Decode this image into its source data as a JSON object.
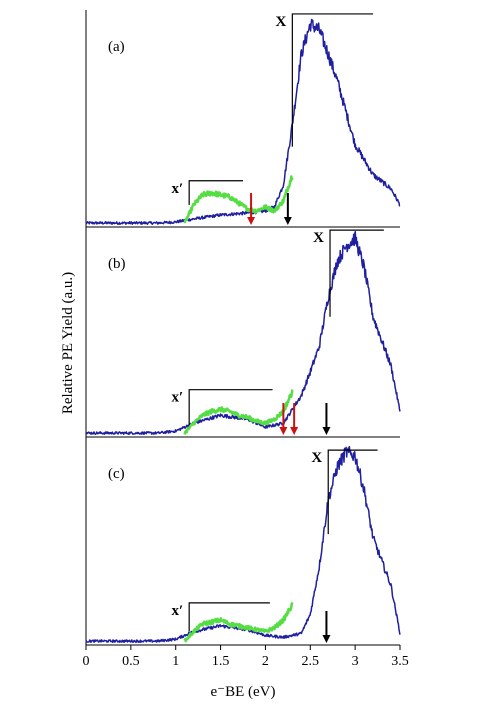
{
  "chart_data": {
    "type": "line",
    "xlabel": "e⁻BE (eV)",
    "ylabel": "Relative PE Yield (a.u.)",
    "xlim": [
      0,
      3.5
    ],
    "x_ticks": [
      0,
      0.5,
      1,
      1.5,
      2,
      2.5,
      3,
      3.5
    ],
    "x_tick_labels": [
      "0",
      "0.5",
      "1",
      "1.5",
      "2",
      "2.5",
      "3",
      "3.5"
    ],
    "colors": {
      "blue": "#1f1f9f",
      "green": "#55dd44",
      "red": "#cc1111",
      "black": "#000000"
    },
    "panels": [
      {
        "label": "(a)",
        "blue": {
          "x": [
            0,
            0.8,
            1.0,
            1.2,
            1.5,
            1.8,
            2.0,
            2.1,
            2.2,
            2.3,
            2.4,
            2.5,
            2.6,
            2.7,
            2.8,
            3.0,
            3.2,
            3.4,
            3.5
          ],
          "y": [
            0.01,
            0.01,
            0.015,
            0.03,
            0.05,
            0.06,
            0.07,
            0.09,
            0.2,
            0.5,
            0.85,
            1.0,
            0.97,
            0.85,
            0.72,
            0.4,
            0.25,
            0.18,
            0.1
          ]
        },
        "green": {
          "x": [
            1.1,
            1.2,
            1.3,
            1.4,
            1.5,
            1.6,
            1.7,
            1.8,
            1.9,
            2.0,
            2.1,
            2.2,
            2.3
          ],
          "y": [
            0.01,
            0.1,
            0.15,
            0.16,
            0.15,
            0.14,
            0.11,
            0.08,
            0.07,
            0.09,
            0.07,
            0.12,
            0.25
          ]
        },
        "arrows": [
          {
            "x": 1.84,
            "color": "red"
          },
          {
            "x": 2.25,
            "color": "black"
          }
        ],
        "markers": [
          {
            "text": "X",
            "x0": 2.3,
            "x1": 3.2,
            "level": 1.05,
            "drop": 0.66
          },
          {
            "text": "x′",
            "x0": 1.15,
            "x1": 1.75,
            "level": 0.22,
            "drop": 0.12
          }
        ]
      },
      {
        "label": "(b)",
        "blue": {
          "x": [
            0,
            0.8,
            1.0,
            1.2,
            1.5,
            1.8,
            2.0,
            2.2,
            2.4,
            2.5,
            2.6,
            2.7,
            2.8,
            2.9,
            3.0,
            3.1,
            3.2,
            3.4,
            3.5
          ],
          "y": [
            0.01,
            0.01,
            0.02,
            0.06,
            0.1,
            0.08,
            0.04,
            0.06,
            0.2,
            0.32,
            0.45,
            0.7,
            0.88,
            0.96,
            1.0,
            0.85,
            0.6,
            0.35,
            0.12
          ]
        },
        "green": {
          "x": [
            1.1,
            1.2,
            1.3,
            1.4,
            1.5,
            1.6,
            1.7,
            1.8,
            1.9,
            2.0,
            2.1,
            2.2,
            2.3
          ],
          "y": [
            0.01,
            0.06,
            0.1,
            0.12,
            0.13,
            0.12,
            0.1,
            0.09,
            0.07,
            0.06,
            0.08,
            0.12,
            0.22
          ]
        },
        "arrows": [
          {
            "x": 2.2,
            "color": "red"
          },
          {
            "x": 2.32,
            "color": "red"
          },
          {
            "x": 2.68,
            "color": "black"
          }
        ],
        "markers": [
          {
            "text": "X",
            "x0": 2.72,
            "x1": 3.32,
            "level": 1.04,
            "drop": 0.44
          },
          {
            "text": "x′",
            "x0": 1.15,
            "x1": 2.08,
            "level": 0.23,
            "drop": 0.18
          }
        ]
      },
      {
        "label": "(c)",
        "blue": {
          "x": [
            0,
            0.8,
            1.0,
            1.2,
            1.5,
            1.8,
            2.0,
            2.2,
            2.4,
            2.5,
            2.6,
            2.7,
            2.8,
            2.9,
            3.0,
            3.1,
            3.2,
            3.4,
            3.5
          ],
          "y": [
            0.01,
            0.01,
            0.02,
            0.06,
            0.09,
            0.07,
            0.04,
            0.03,
            0.05,
            0.15,
            0.4,
            0.75,
            0.92,
            1.0,
            0.98,
            0.8,
            0.55,
            0.3,
            0.05
          ]
        },
        "green": {
          "x": [
            1.1,
            1.2,
            1.3,
            1.4,
            1.5,
            1.6,
            1.7,
            1.8,
            1.9,
            2.0,
            2.1,
            2.2,
            2.3
          ],
          "y": [
            0.01,
            0.06,
            0.1,
            0.11,
            0.12,
            0.1,
            0.09,
            0.08,
            0.07,
            0.06,
            0.08,
            0.12,
            0.2
          ]
        },
        "arrows": [
          {
            "x": 2.68,
            "color": "black"
          }
        ],
        "markers": [
          {
            "text": "X",
            "x0": 2.7,
            "x1": 3.25,
            "level": 1.01,
            "drop": 0.44
          },
          {
            "text": "x′",
            "x0": 1.15,
            "x1": 2.05,
            "level": 0.21,
            "drop": 0.15
          }
        ]
      }
    ]
  }
}
